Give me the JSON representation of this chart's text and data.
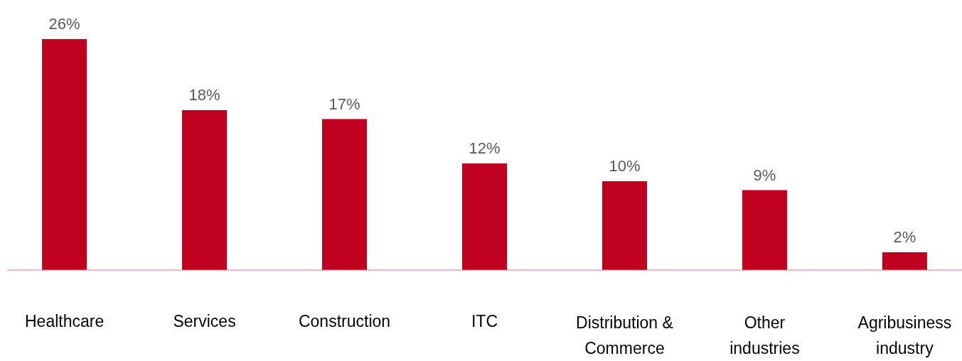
{
  "chart_data": {
    "type": "bar",
    "categories": [
      "Healthcare",
      "Services",
      "Construction",
      "ITC",
      "Distribution & Commerce",
      "Other industries",
      "Agribusiness industry"
    ],
    "values": [
      26,
      18,
      17,
      12,
      10,
      9,
      2
    ],
    "value_labels": [
      "26%",
      "18%",
      "17%",
      "12%",
      "10%",
      "9%",
      "2%"
    ],
    "color": "#c00020"
  }
}
